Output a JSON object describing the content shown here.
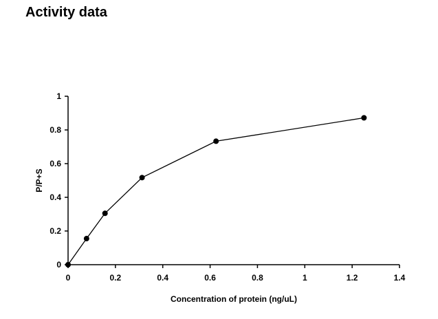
{
  "page": {
    "title": "Activity data"
  },
  "chart_data": {
    "type": "line",
    "title": "",
    "xlabel": "Concentration of protein (ng/uL)",
    "ylabel": "P/P+S",
    "xlim": [
      0,
      1.4
    ],
    "ylim": [
      0,
      1
    ],
    "x_ticks": [
      0,
      0.2,
      0.4,
      0.6,
      0.8,
      1,
      1.2,
      1.4
    ],
    "x_tick_labels": [
      "0",
      "0.2",
      "0.4",
      "0.6",
      "0.8",
      "1",
      "1.2",
      "1.4"
    ],
    "y_ticks": [
      0,
      0.2,
      0.4,
      0.6,
      0.8,
      1
    ],
    "y_tick_labels": [
      "0",
      "0.2",
      "0.4",
      "0.6",
      "0.8",
      "1"
    ],
    "grid": false,
    "legend": "none",
    "series": [
      {
        "x": [
          0,
          0.078,
          0.156,
          0.3125,
          0.625,
          1.25
        ],
        "y": [
          0,
          0.155,
          0.305,
          0.517,
          0.733,
          0.872
        ],
        "color": "#000000",
        "marker": "filled-circle"
      }
    ]
  }
}
